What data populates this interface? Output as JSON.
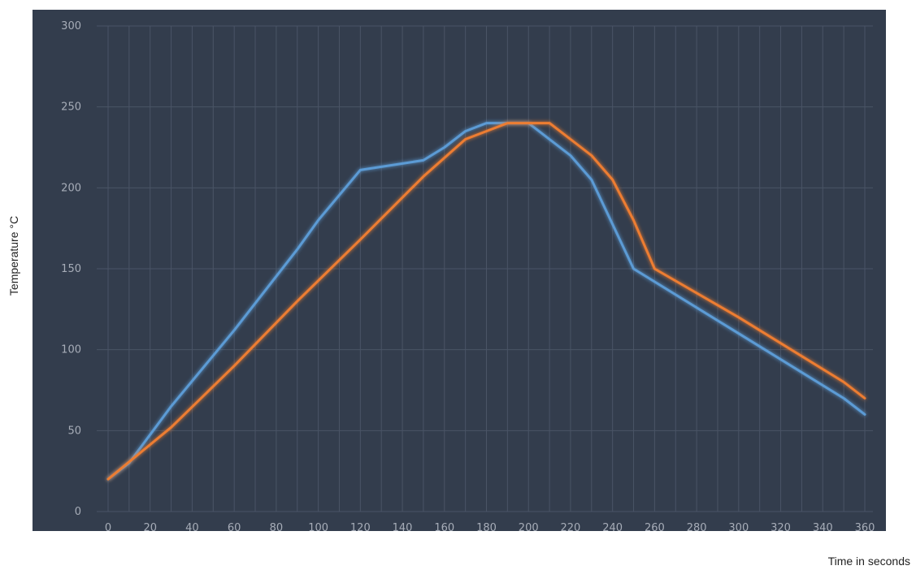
{
  "chart_data": {
    "type": "line",
    "title": "",
    "xlabel": "Time in seconds",
    "ylabel": "Temperature °C",
    "xlim": [
      0,
      360
    ],
    "ylim": [
      0,
      300
    ],
    "x_ticks": [
      0,
      20,
      40,
      60,
      80,
      100,
      120,
      140,
      160,
      180,
      200,
      220,
      240,
      260,
      280,
      300,
      320,
      340,
      360
    ],
    "y_ticks": [
      0,
      50,
      100,
      150,
      200,
      250,
      300
    ],
    "x_tick_labels": [
      "0",
      "20",
      "40",
      "60",
      "80",
      "100",
      "120",
      "140",
      "160",
      "180",
      "200",
      "220",
      "240",
      "260",
      "280",
      "300",
      "320",
      "340",
      "360"
    ],
    "y_tick_labels": [
      "0",
      "50",
      "100",
      "150",
      "200",
      "250",
      "300"
    ],
    "grid": true,
    "legend": "none",
    "background": "#333d4d",
    "series": [
      {
        "color": "#5b9bd5",
        "points": [
          [
            0,
            20
          ],
          [
            10,
            30
          ],
          [
            30,
            65
          ],
          [
            60,
            112
          ],
          [
            90,
            162
          ],
          [
            100,
            180
          ],
          [
            120,
            211
          ],
          [
            150,
            217
          ],
          [
            160,
            225
          ],
          [
            170,
            235
          ],
          [
            180,
            240
          ],
          [
            200,
            240
          ],
          [
            220,
            220
          ],
          [
            230,
            205
          ],
          [
            250,
            150
          ],
          [
            300,
            110
          ],
          [
            350,
            70
          ],
          [
            360,
            60
          ]
        ]
      },
      {
        "color": "#ed7d31",
        "points": [
          [
            0,
            20
          ],
          [
            30,
            52
          ],
          [
            60,
            90
          ],
          [
            90,
            130
          ],
          [
            120,
            168
          ],
          [
            150,
            207
          ],
          [
            170,
            230
          ],
          [
            190,
            240
          ],
          [
            210,
            240
          ],
          [
            230,
            220
          ],
          [
            240,
            205
          ],
          [
            250,
            180
          ],
          [
            260,
            150
          ],
          [
            300,
            120
          ],
          [
            350,
            80
          ],
          [
            360,
            70
          ]
        ]
      }
    ]
  }
}
